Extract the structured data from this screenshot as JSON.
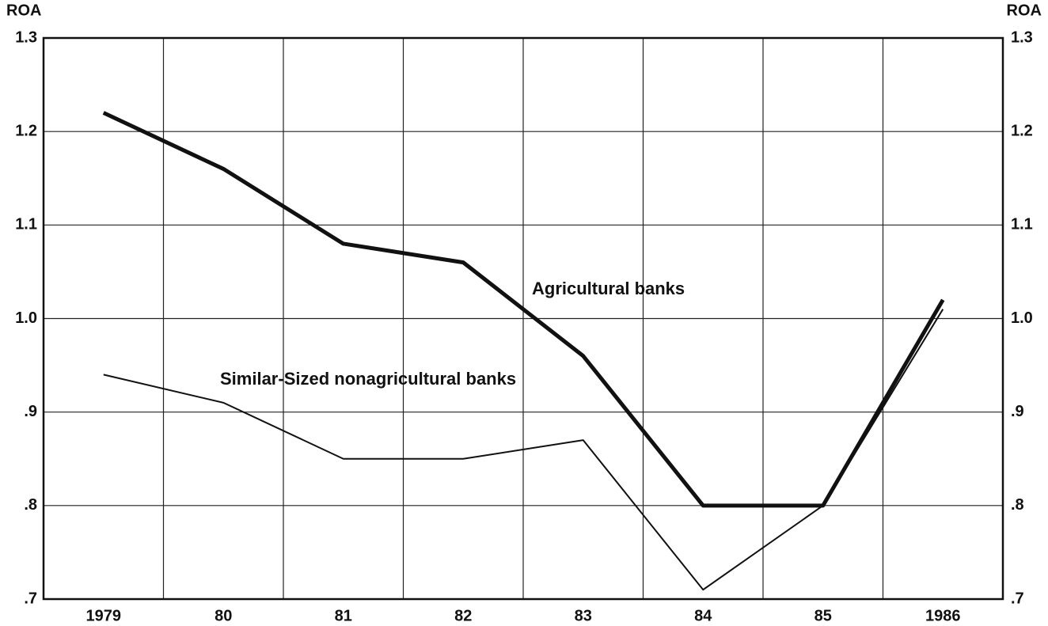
{
  "chart_data": {
    "type": "line",
    "y_axis_label": "ROA",
    "categories": [
      "1979",
      "80",
      "81",
      "82",
      "83",
      "84",
      "85",
      "1986"
    ],
    "series": [
      {
        "name": "Agricultural banks",
        "color": "#111111",
        "values": [
          1.22,
          1.16,
          1.08,
          1.06,
          0.96,
          0.8,
          0.8,
          1.02
        ]
      },
      {
        "name": "Similar-Sized nonagricultural banks",
        "color": "#111111",
        "values": [
          0.94,
          0.91,
          0.85,
          0.85,
          0.87,
          0.71,
          0.8,
          1.01
        ]
      }
    ],
    "ylim": [
      0.7,
      1.3
    ],
    "yticks": [
      {
        "value": 0.7,
        "label": ".7"
      },
      {
        "value": 0.8,
        "label": ".8"
      },
      {
        "value": 0.9,
        "label": ".9"
      },
      {
        "value": 1.0,
        "label": "1.0"
      },
      1.1,
      1.2,
      1.3
    ],
    "grid": true
  }
}
